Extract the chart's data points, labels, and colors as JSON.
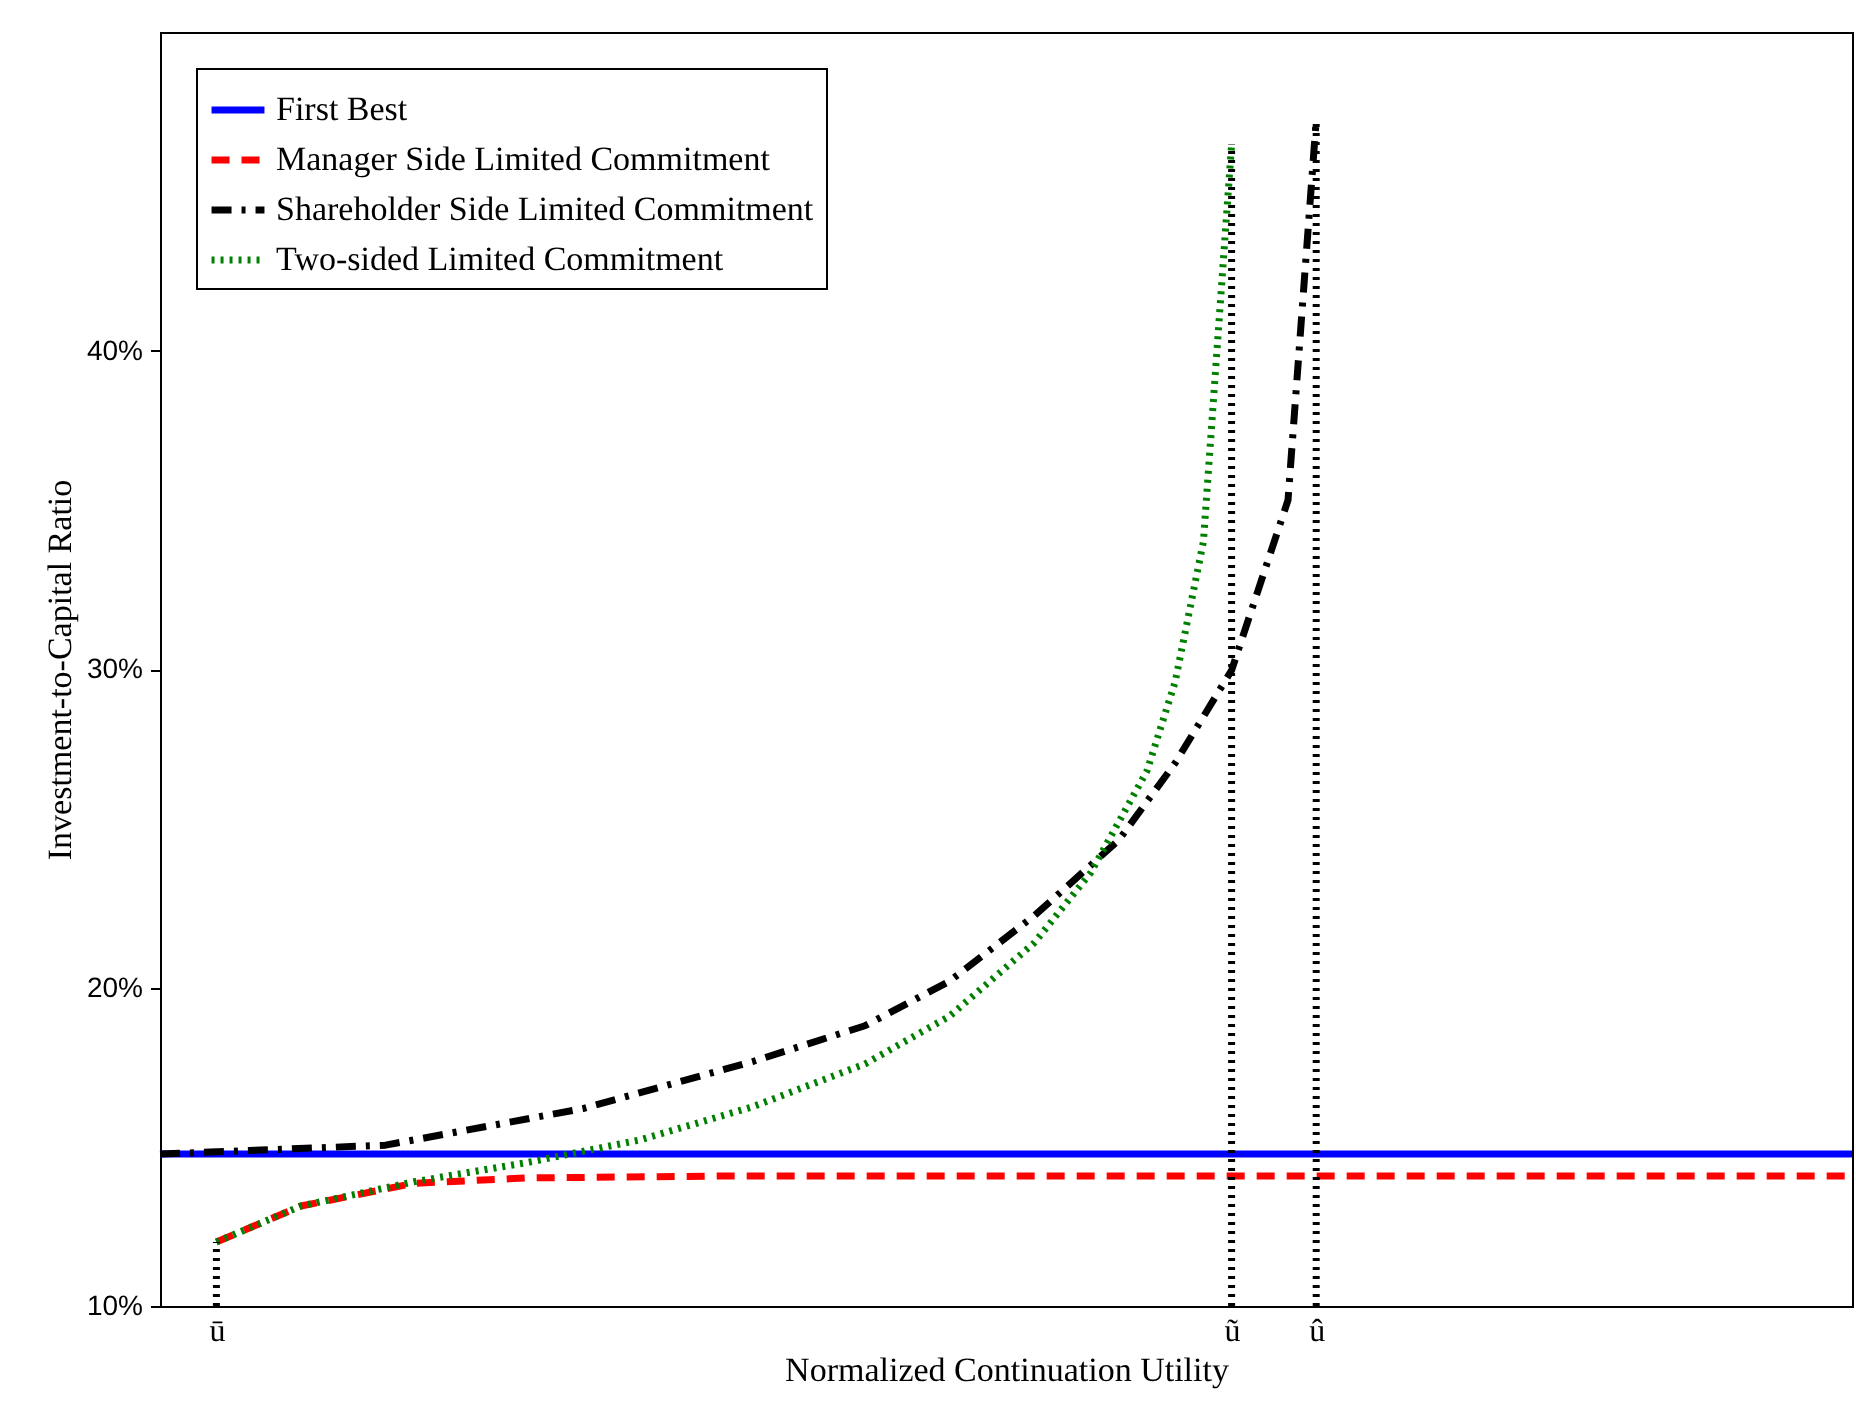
{
  "chart_data": {
    "type": "line",
    "xlabel": "Normalized Continuation Utility",
    "ylabel": "Investment-to-Capital Ratio",
    "categories": [
      null,
      null,
      "ū",
      null,
      null,
      null,
      null,
      null,
      null,
      null,
      null,
      null,
      null,
      null,
      null,
      null,
      null,
      null,
      null,
      null,
      null,
      null,
      null,
      null,
      null,
      null,
      null,
      null,
      null,
      null,
      null,
      null,
      null,
      null,
      null,
      null,
      null,
      null,
      "ũ",
      null,
      null,
      "û",
      null,
      null,
      null,
      null,
      null,
      null,
      null,
      null,
      null,
      null,
      null,
      null,
      null,
      null,
      null,
      null,
      null,
      null,
      null
    ],
    "ylim": [
      10,
      50
    ],
    "yticks": [
      {
        "value": 10,
        "label": "10%"
      },
      {
        "value": 20,
        "label": "20%"
      },
      {
        "value": 30,
        "label": "30%"
      },
      {
        "value": 40,
        "label": "40%"
      }
    ],
    "grid": false,
    "legend": "top left",
    "marker": "none",
    "series": [
      {
        "name": "First Best",
        "color": "#0000ff",
        "line_style": "solid",
        "values": [
          14.77,
          null,
          null,
          null,
          null,
          null,
          null,
          null,
          null,
          null,
          null,
          null,
          null,
          null,
          null,
          null,
          null,
          null,
          null,
          null,
          null,
          null,
          null,
          null,
          null,
          null,
          null,
          null,
          null,
          null,
          null,
          null,
          null,
          null,
          null,
          null,
          null,
          null,
          null,
          null,
          null,
          null,
          null,
          null,
          null,
          null,
          null,
          null,
          null,
          null,
          null,
          null,
          null,
          null,
          null,
          null,
          null,
          null,
          null,
          null,
          14.77
        ]
      },
      {
        "name": "Manager Side Limited Commitment",
        "color": "#ff0000",
        "line_style": "dashed",
        "values": [
          null,
          null,
          12.01,
          null,
          null,
          13.14,
          null,
          null,
          null,
          13.85,
          null,
          null,
          null,
          14.02,
          null,
          null,
          null,
          null,
          null,
          null,
          14.08,
          null,
          null,
          null,
          null,
          null,
          null,
          null,
          null,
          null,
          null,
          null,
          null,
          null,
          null,
          null,
          null,
          null,
          null,
          null,
          null,
          null,
          null,
          null,
          null,
          null,
          null,
          null,
          null,
          null,
          null,
          null,
          null,
          null,
          null,
          null,
          null,
          null,
          null,
          null,
          14.08
        ]
      },
      {
        "name": "Shareholder Side Limited Commitment",
        "color": "#000000",
        "line_style": "dashdot",
        "values": [
          14.77,
          null,
          null,
          null,
          null,
          null,
          null,
          null,
          15.05,
          null,
          null,
          null,
          null,
          null,
          null,
          16.2,
          null,
          null,
          null,
          null,
          null,
          17.67,
          null,
          null,
          null,
          18.8,
          null,
          null,
          20.2,
          null,
          null,
          22.25,
          null,
          null,
          24.63,
          null,
          27.05,
          null,
          29.96,
          null,
          35.3,
          47.23,
          null,
          null,
          null,
          null,
          null,
          null,
          null,
          null,
          null,
          null,
          null,
          null,
          null,
          null,
          null,
          null,
          null,
          null,
          null
        ]
      },
      {
        "name": "Two-sided Limited Commitment",
        "color": "#008000",
        "line_style": "dotted",
        "values": [
          null,
          null,
          12.01,
          null,
          null,
          13.14,
          null,
          null,
          null,
          13.9,
          null,
          null,
          null,
          14.5,
          null,
          null,
          null,
          15.21,
          null,
          null,
          null,
          16.25,
          null,
          null,
          null,
          17.6,
          null,
          null,
          19.1,
          null,
          null,
          21.4,
          null,
          23.6,
          null,
          26.8,
          29.6,
          34.0,
          46.47,
          null,
          null,
          null,
          null,
          null,
          null,
          null,
          null,
          null,
          null,
          null,
          null,
          null,
          null,
          null,
          null,
          null,
          null,
          null,
          null,
          null,
          null
        ]
      },
      {
        "type": "line",
        "color": "#000000",
        "line_style": "dotted",
        "x": [
          "ū",
          "ū"
        ],
        "values": [
          10,
          12.01
        ]
      },
      {
        "type": "line",
        "color": "#000000",
        "line_style": "dotted",
        "x": [
          "ũ",
          "ũ"
        ],
        "values": [
          10,
          46.47
        ]
      },
      {
        "type": "line",
        "color": "#000000",
        "line_style": "dotted",
        "x": [
          "û",
          "û"
        ],
        "values": [
          10,
          47.23
        ]
      }
    ]
  }
}
